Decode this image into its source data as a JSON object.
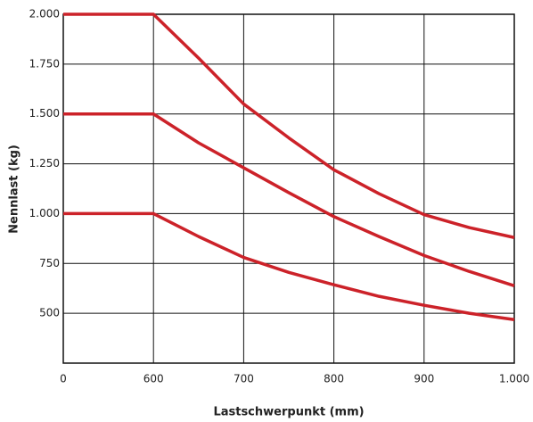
{
  "chart_data": {
    "type": "line",
    "x_label": "Lastschwerpunkt (mm)",
    "y_label": "Nennlast (kg)",
    "x": [
      0,
      600,
      650,
      700,
      750,
      800,
      850,
      900,
      950,
      1000
    ],
    "series": [
      {
        "color": "#cc2229",
        "values": [
          2000,
          2000,
          1780,
          1550,
          1380,
          1220,
          1100,
          995,
          930,
          880
        ]
      },
      {
        "color": "#cc2229",
        "values": [
          1500,
          1500,
          1355,
          1230,
          1105,
          985,
          885,
          790,
          710,
          638
        ]
      },
      {
        "color": "#cc2229",
        "values": [
          1000,
          1000,
          885,
          780,
          705,
          643,
          585,
          540,
          500,
          468
        ]
      }
    ],
    "xlim": [
      0,
      1000
    ],
    "xticks": [
      0,
      600,
      700,
      800,
      900,
      {
        "value": 1000,
        "label": "1.000"
      }
    ],
    "ylim": [
      250,
      2000
    ],
    "yticks": [
      500,
      750,
      {
        "value": 1000,
        "label": "1.000"
      },
      {
        "value": 1250,
        "label": "1.250"
      },
      {
        "value": 1500,
        "label": "1.500"
      },
      {
        "value": 1750,
        "label": "1.750"
      },
      {
        "value": 2000,
        "label": "2.000"
      }
    ],
    "grid": true
  }
}
